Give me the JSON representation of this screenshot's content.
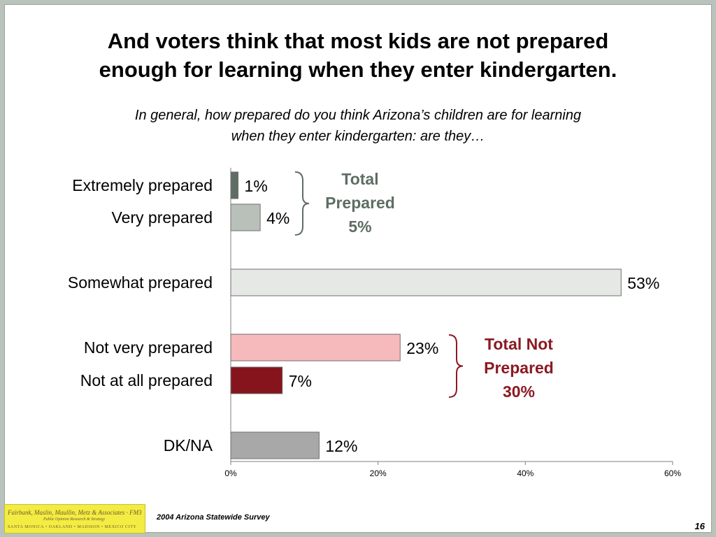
{
  "title": {
    "line1": "And voters think that most kids are not prepared",
    "line2": "enough for learning when they enter kindergarten."
  },
  "subtitle": {
    "line1": "In general, how prepared do you think Arizona’s children are for learning",
    "line2": "when they enter kindergarten: are they…"
  },
  "chart_data": {
    "type": "bar",
    "orientation": "horizontal",
    "categories": [
      "Extremely prepared",
      "Very prepared",
      "Somewhat prepared",
      "Not very prepared",
      "Not at all prepared",
      "DK/NA"
    ],
    "values": [
      1,
      4,
      53,
      23,
      7,
      12
    ],
    "value_labels": [
      "1%",
      "4%",
      "53%",
      "23%",
      "7%",
      "12%"
    ],
    "colors": [
      "#5f6d64",
      "#b8c0b9",
      "#e6e8e6",
      "#f6b9bc",
      "#86141d",
      "#a8a8a8"
    ],
    "xlim": [
      0,
      60
    ],
    "xticks": [
      "0%",
      "20%",
      "40%",
      "60%"
    ],
    "grid": false,
    "groups": [
      {
        "lines": [
          "Total",
          "Prepared",
          "5%"
        ],
        "color": "#5f6d64",
        "members": [
          "Extremely prepared",
          "Very prepared"
        ]
      },
      {
        "lines": [
          "Total Not",
          "Prepared",
          "30%"
        ],
        "color": "#8b1a22",
        "members": [
          "Not very prepared",
          "Not at all prepared"
        ]
      }
    ]
  },
  "footer": {
    "logo_line1": "Fairbank, Maslin, Maullin, Metz & Associates · FM3",
    "logo_line2": "Public Opinion Research & Strategy",
    "logo_line3": "SANTA MONICA • OAKLAND • MADISON • MEXICO CITY",
    "survey": "2004 Arizona Statewide Survey",
    "page_number": "16"
  }
}
